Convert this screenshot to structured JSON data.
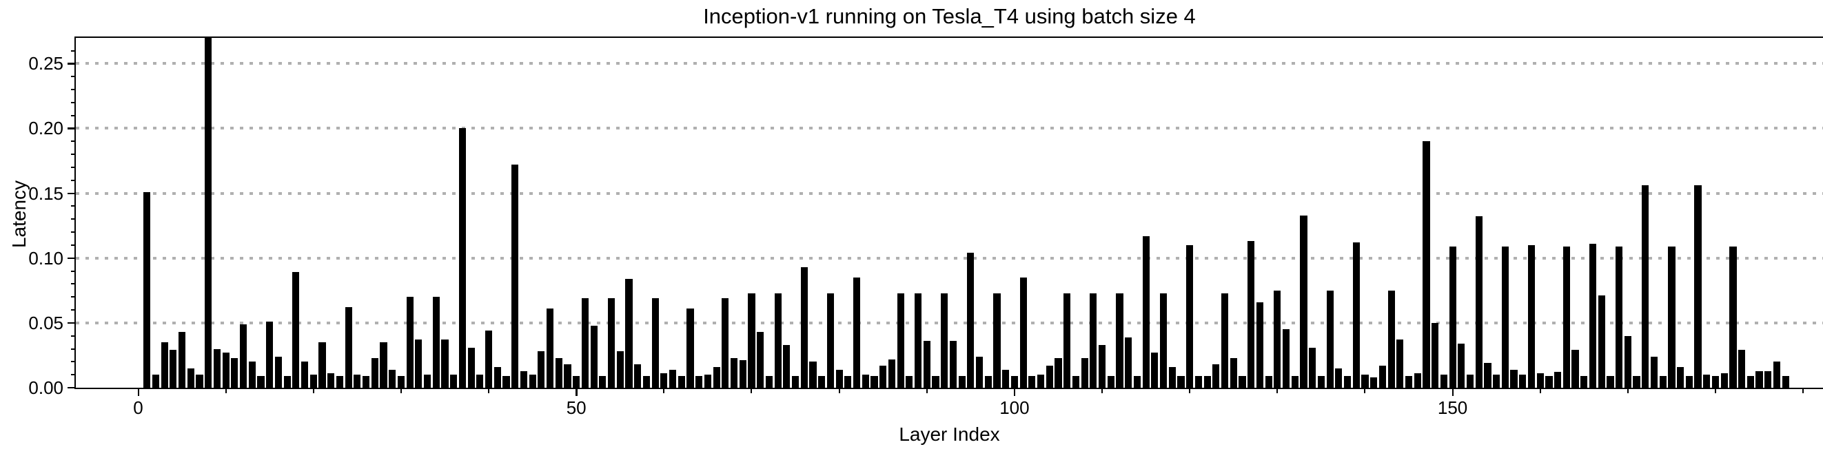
{
  "figure": {
    "title": "Inception-v1 running on Tesla_T4 using batch size 4",
    "xlabel": "Layer Index",
    "ylabel": "Latency"
  },
  "chart_data": {
    "type": "bar",
    "title": "Inception-v1 running on Tesla_T4 using batch size 4",
    "xlabel": "Layer Index",
    "ylabel": "Latency",
    "bar_color": "#000000",
    "grid_color": "#b0b0b0",
    "grid": "horizontal dotted",
    "legend": "none",
    "ylim": [
      0,
      0.27
    ],
    "xlim": [
      -7,
      192
    ],
    "ytick_labels": [
      "0.00",
      "0.05",
      "0.10",
      "0.15",
      "0.20",
      "0.25"
    ],
    "ytick_values": [
      0.0,
      0.05,
      0.1,
      0.15,
      0.2,
      0.25
    ],
    "xtick_labels": [
      "0",
      "50",
      "100",
      "150"
    ],
    "xtick_values": [
      0,
      50,
      100,
      150
    ],
    "minor_xtick_step": 10,
    "minor_ytick_step": 0.01,
    "first_layer_index": 1,
    "n_layers": 188,
    "values": [
      0.151,
      0.01,
      0.035,
      0.029,
      0.043,
      0.015,
      0.01,
      0.27,
      0.03,
      0.027,
      0.023,
      0.049,
      0.02,
      0.009,
      0.051,
      0.024,
      0.009,
      0.089,
      0.02,
      0.01,
      0.035,
      0.011,
      0.009,
      0.062,
      0.01,
      0.009,
      0.023,
      0.035,
      0.014,
      0.009,
      0.07,
      0.037,
      0.01,
      0.07,
      0.037,
      0.01,
      0.2,
      0.031,
      0.01,
      0.044,
      0.016,
      0.009,
      0.172,
      0.013,
      0.01,
      0.028,
      0.061,
      0.023,
      0.018,
      0.009,
      0.069,
      0.048,
      0.009,
      0.069,
      0.028,
      0.084,
      0.018,
      0.009,
      0.069,
      0.011,
      0.014,
      0.009,
      0.061,
      0.009,
      0.01,
      0.016,
      0.069,
      0.023,
      0.021,
      0.073,
      0.043,
      0.009,
      0.073,
      0.033,
      0.009,
      0.093,
      0.02,
      0.009,
      0.073,
      0.014,
      0.009,
      0.085,
      0.01,
      0.009,
      0.017,
      0.022,
      0.073,
      0.009,
      0.073,
      0.036,
      0.009,
      0.073,
      0.036,
      0.009,
      0.104,
      0.024,
      0.009,
      0.073,
      0.014,
      0.009,
      0.085,
      0.009,
      0.01,
      0.017,
      0.023,
      0.073,
      0.009,
      0.023,
      0.073,
      0.033,
      0.009,
      0.073,
      0.039,
      0.009,
      0.117,
      0.027,
      0.073,
      0.016,
      0.009,
      0.11,
      0.009,
      0.009,
      0.018,
      0.073,
      0.023,
      0.009,
      0.113,
      0.066,
      0.009,
      0.075,
      0.045,
      0.009,
      0.133,
      0.031,
      0.009,
      0.075,
      0.015,
      0.009,
      0.112,
      0.01,
      0.008,
      0.017,
      0.075,
      0.037,
      0.009,
      0.011,
      0.19,
      0.05,
      0.01,
      0.109,
      0.034,
      0.01,
      0.132,
      0.019,
      0.01,
      0.109,
      0.014,
      0.01,
      0.11,
      0.011,
      0.009,
      0.012,
      0.109,
      0.029,
      0.009,
      0.111,
      0.071,
      0.009,
      0.109,
      0.04,
      0.009,
      0.156,
      0.024,
      0.009,
      0.109,
      0.016,
      0.009,
      0.156,
      0.01,
      0.009,
      0.011,
      0.109,
      0.029,
      0.009,
      0.013,
      0.013,
      0.02,
      0.009
    ]
  }
}
